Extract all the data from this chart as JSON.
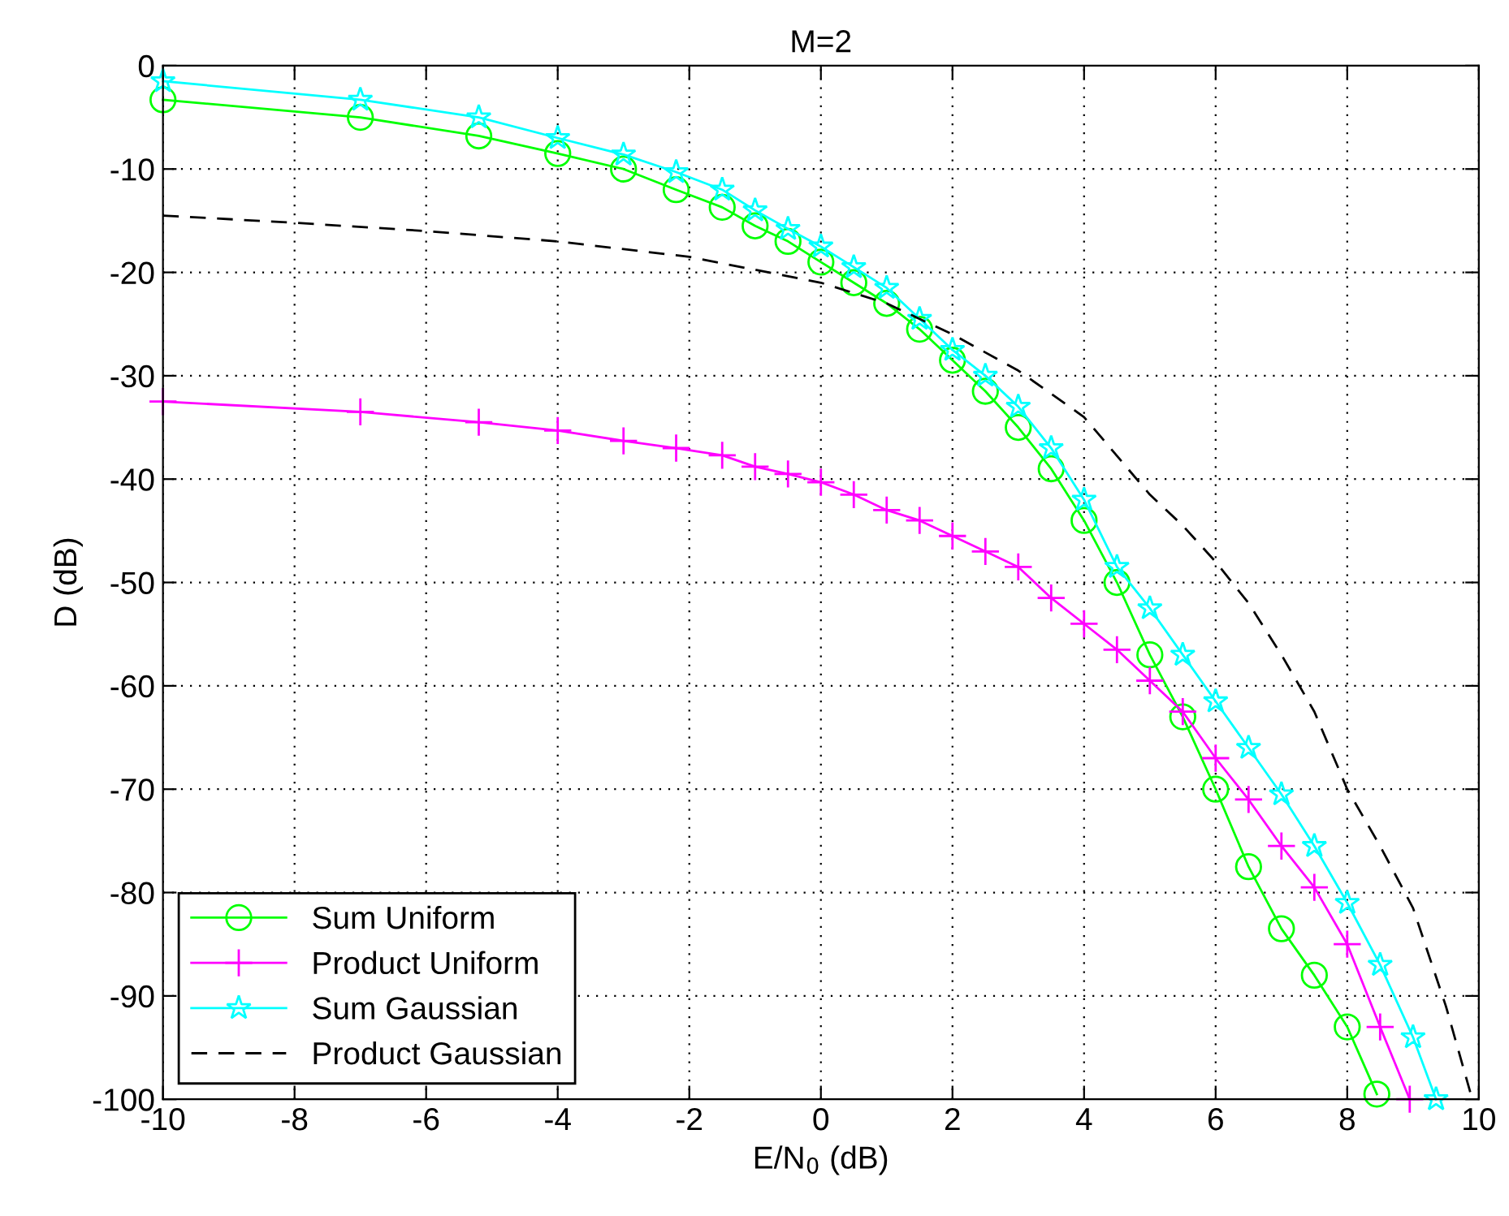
{
  "chart_data": {
    "type": "line",
    "title": "M=2",
    "xlabel": "E/N$_{0}$ (dB)",
    "ylabel": "D (dB)",
    "xlim": [
      -10,
      10
    ],
    "ylim": [
      -100,
      0
    ],
    "xticks": [
      -10,
      -8,
      -6,
      -4,
      -2,
      0,
      2,
      4,
      6,
      8,
      10
    ],
    "yticks": [
      -100,
      -90,
      -80,
      -70,
      -60,
      -50,
      -40,
      -30,
      -20,
      -10,
      0
    ],
    "grid": true,
    "legend": "bottom left",
    "series": [
      {
        "name": "Sum Uniform",
        "color": "#00ff00",
        "marker": "circle",
        "line_style": "solid",
        "x": [
          -10,
          -7,
          -5.2,
          -4,
          -3,
          -2.2,
          -1.5,
          -1,
          -0.5,
          0,
          0.5,
          1,
          1.5,
          2,
          2.5,
          3,
          3.5,
          4,
          4.5,
          5,
          5.5,
          6,
          6.5,
          7,
          7.5,
          8,
          8.45
        ],
        "values": [
          -3.3,
          -5,
          -6.8,
          -8.5,
          -10,
          -12,
          -13.7,
          -15.5,
          -17,
          -19,
          -21,
          -23,
          -25.5,
          -28.5,
          -31.5,
          -35,
          -39,
          -44,
          -50,
          -57,
          -63,
          -70,
          -77.5,
          -83.5,
          -88,
          -93,
          -99.5
        ]
      },
      {
        "name": "Product Uniform",
        "color": "#ff00ff",
        "marker": "cross",
        "line_style": "solid",
        "x": [
          -10,
          -7,
          -5.2,
          -4,
          -3,
          -2.2,
          -1.5,
          -1,
          -0.5,
          0,
          0.5,
          1,
          1.5,
          2,
          2.5,
          3,
          3.5,
          4,
          4.5,
          5,
          5.5,
          6,
          6.5,
          7,
          7.5,
          8,
          8.5,
          8.95
        ],
        "values": [
          -32.5,
          -33.5,
          -34.5,
          -35.3,
          -36.3,
          -37,
          -37.7,
          -38.8,
          -39.5,
          -40.3,
          -41.5,
          -43,
          -44,
          -45.5,
          -47,
          -48.5,
          -51.5,
          -54,
          -56.5,
          -59.5,
          -62.5,
          -67,
          -71,
          -75.5,
          -79.5,
          -85,
          -93,
          -100
        ]
      },
      {
        "name": "Sum Gaussian",
        "color": "#00ffff",
        "marker": "star",
        "line_style": "solid",
        "x": [
          -10,
          -7,
          -5.2,
          -4,
          -3,
          -2.2,
          -1.5,
          -1,
          -0.5,
          0,
          0.5,
          1,
          1.5,
          2,
          2.5,
          3,
          3.5,
          4,
          4.5,
          5,
          5.5,
          6,
          6.5,
          7,
          7.5,
          8,
          8.5,
          9,
          9.35
        ],
        "values": [
          -1.5,
          -3.3,
          -5,
          -7,
          -8.6,
          -10.3,
          -12,
          -14,
          -15.8,
          -17.5,
          -19.5,
          -21.5,
          -24.5,
          -27.5,
          -30,
          -33,
          -37,
          -42,
          -48.5,
          -52.5,
          -57,
          -61.5,
          -66,
          -70.5,
          -75.5,
          -81,
          -87,
          -94,
          -100
        ]
      },
      {
        "name": "Product Gaussian",
        "color": "#000000",
        "marker": "none",
        "line_style": "dashed",
        "x": [
          -10,
          -8,
          -6,
          -4,
          -2,
          0,
          1,
          2,
          3,
          4,
          5,
          5.5,
          6,
          6.5,
          7,
          7.5,
          8,
          8.5,
          9,
          9.5,
          9.9
        ],
        "values": [
          -14.5,
          -15.2,
          -16,
          -17,
          -18.5,
          -21,
          -23,
          -26,
          -29.5,
          -34,
          -41.5,
          -44.5,
          -48,
          -52,
          -57,
          -62.5,
          -70,
          -75.5,
          -81.5,
          -91,
          -100
        ]
      }
    ]
  }
}
